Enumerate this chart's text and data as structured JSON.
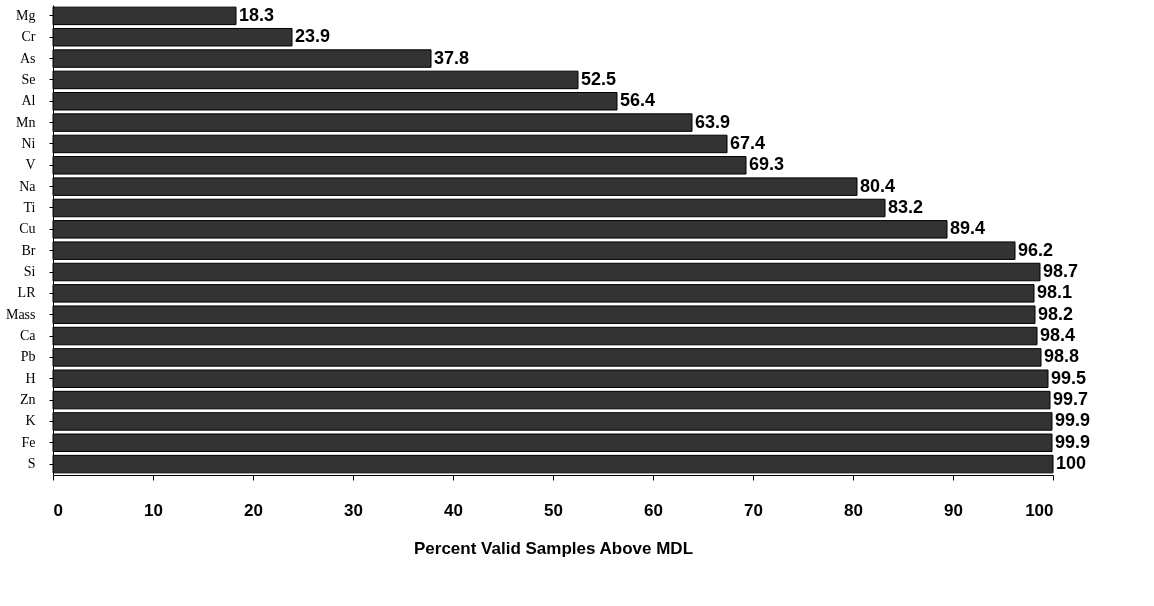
{
  "chart_data": {
    "type": "bar",
    "orientation": "horizontal",
    "xlabel": "Percent Valid Samples Above MDL",
    "categories": [
      "Mg",
      "Cr",
      "As",
      "Se",
      "Al",
      "Mn",
      "Ni",
      "V",
      "Na",
      "Ti",
      "Cu",
      "Br",
      "Si",
      "LR",
      "Mass",
      "Ca",
      "Pb",
      "H",
      "Zn",
      "K",
      "Fe",
      "S"
    ],
    "values": [
      18.3,
      23.9,
      37.8,
      52.5,
      56.4,
      63.9,
      67.4,
      69.3,
      80.4,
      83.2,
      89.4,
      96.2,
      98.7,
      98.1,
      98.2,
      98.4,
      98.8,
      99.5,
      99.7,
      99.9,
      99.9,
      100
    ],
    "color": "#333333",
    "xlim": [
      0,
      100
    ],
    "xticks": [
      0,
      10,
      20,
      30,
      40,
      50,
      60,
      70,
      80,
      90,
      100
    ],
    "data_labels": true
  }
}
